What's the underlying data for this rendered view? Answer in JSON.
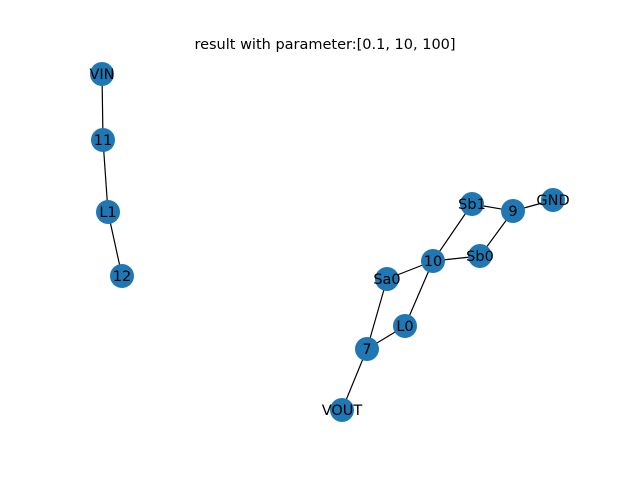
{
  "title": "result with parameter:[0.1, 10, 100]",
  "node_color": "#1f77b4",
  "edge_color": "#000000",
  "nodes": [
    "VIN",
    "11",
    "L1",
    "12",
    "Sb1",
    "9",
    "GND",
    "10",
    "Sb0",
    "Sa0",
    "L0",
    "7",
    "VOUT"
  ],
  "edges": [
    [
      "VIN",
      "11"
    ],
    [
      "11",
      "L1"
    ],
    [
      "L1",
      "12"
    ],
    [
      "Sb1",
      "9"
    ],
    [
      "9",
      "GND"
    ],
    [
      "9",
      "Sb0"
    ],
    [
      "Sb1",
      "10"
    ],
    [
      "10",
      "Sb0"
    ],
    [
      "10",
      "Sa0"
    ],
    [
      "10",
      "L0"
    ],
    [
      "Sa0",
      "7"
    ],
    [
      "L0",
      "7"
    ],
    [
      "7",
      "VOUT"
    ]
  ]
}
